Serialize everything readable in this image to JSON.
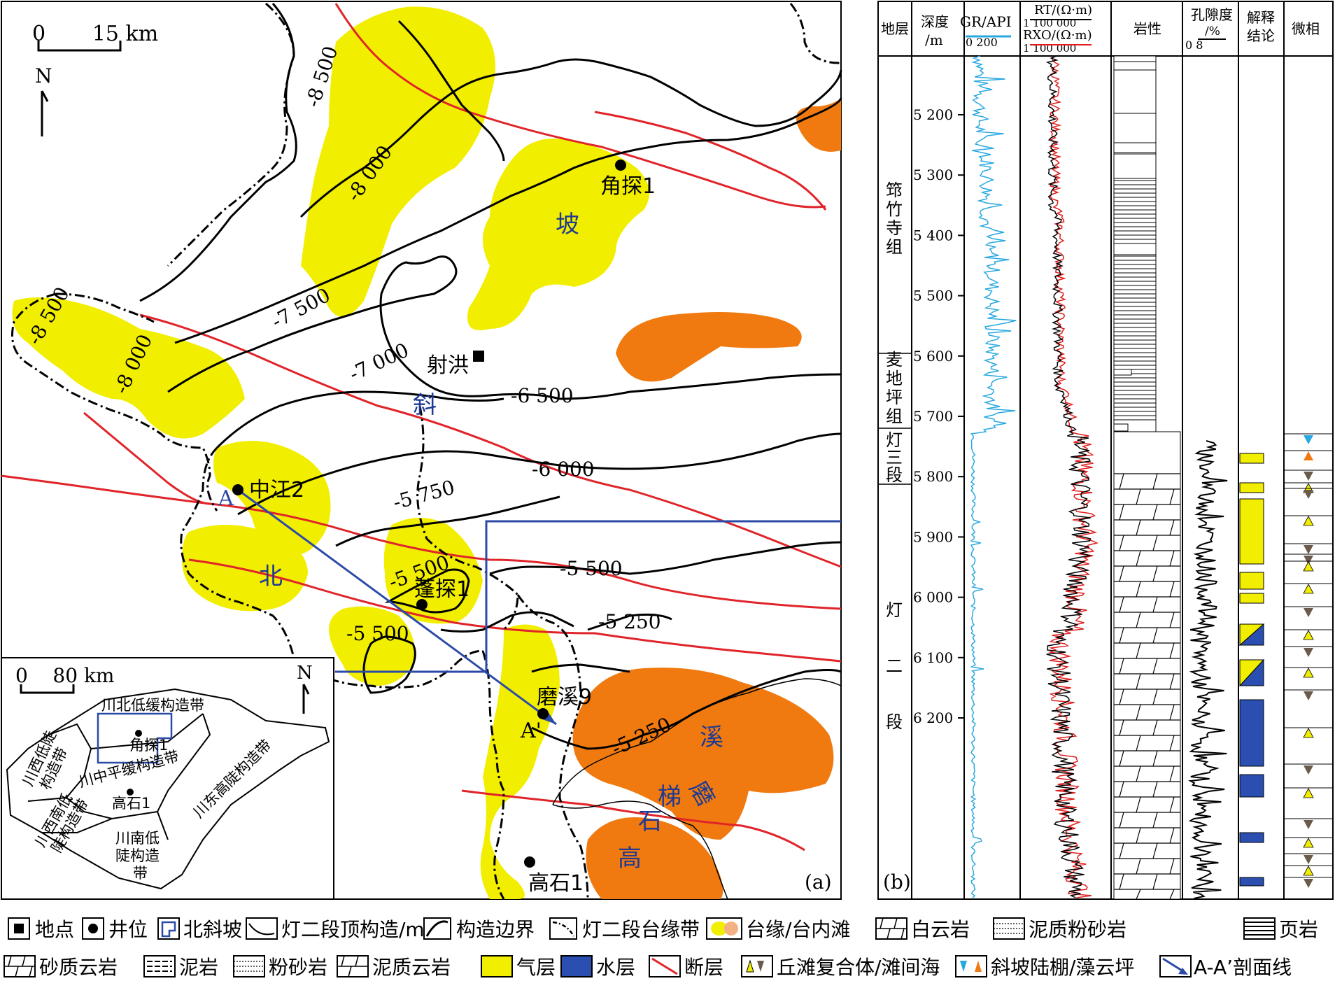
{
  "map": {
    "scale_text": "0       15 km",
    "north": "N",
    "contours": [
      "-8 500",
      "-8 000",
      "-7 500",
      "-8 500",
      "-8 000",
      "-7 000",
      "-6 500",
      "-6 000",
      "-5 750",
      "-5 500",
      "-5 500",
      "-5 250",
      "-5 500",
      "-5 250"
    ],
    "wells": [
      "角探1",
      "中江2",
      "蓬探1",
      "磨溪9",
      "高石1"
    ],
    "site": "射洪",
    "region_chars": {
      "po": "坡",
      "xie": "斜",
      "bei": "北",
      "xi": "溪",
      "gao": "高",
      "shi": "石",
      "ti": "梯",
      "mo": "磨"
    },
    "section_a": "A",
    "section_a2": "A'",
    "panel": "(a)"
  },
  "inset": {
    "scale_text": "0    80 km",
    "north": "N",
    "zones": [
      "川北低缓构造带",
      "川西低陡",
      "构造带",
      "川中平缓构造带",
      "川西南低",
      "陡构造带",
      "川南低",
      "陡构造",
      "带",
      "川东高陡构造带"
    ],
    "wells": [
      "角探1",
      "高石1"
    ]
  },
  "log": {
    "headers": {
      "strata": "地层",
      "depth": "深度",
      "depth_unit": "/m",
      "gr": "GR/API",
      "gr_range": "0 200",
      "rt": "RT/(Ω·m)",
      "rt_range": "1 100 000",
      "rxo": "RXO/(Ω·m)",
      "rxo_range": "1 100 000",
      "lith": "岩性",
      "por": "孔隙度",
      "por_unit": "/%",
      "por_range": "0 8",
      "interp1": "解释",
      "interp2": "结论",
      "facies": "微相"
    },
    "depths": [
      "5 200",
      "5 300",
      "5 400",
      "5 500",
      "5 600",
      "5 700",
      "5 800",
      "5 900",
      "6 000",
      "6 100",
      "6 200"
    ],
    "strata": [
      "筇",
      "竹",
      "寺",
      "组",
      "麦",
      "地",
      "坪",
      "组",
      "灯",
      "三",
      "段",
      "灯",
      "二",
      "段"
    ],
    "panel": "(b)"
  },
  "legend": {
    "row1": [
      "地点",
      "井位",
      "北斜坡",
      "灯二段顶构造/m",
      "构造边界",
      "灯二段台缘带",
      "台缘/台内滩",
      "白云岩",
      "泥质粉砂岩",
      "页岩"
    ],
    "row2": [
      "砂质云岩",
      "泥岩",
      "粉砂岩",
      "泥质云岩",
      "气层",
      "水层",
      "断层",
      "丘滩复合体/滩间海",
      "斜坡陆棚/藻云坪",
      "A-A’剖面线"
    ]
  },
  "colors": {
    "gas": "#f2ee00",
    "beach": "#f07a10",
    "fault": "#e0242a",
    "water": "#2a4fb0",
    "blue_line": "#2b4aa8",
    "gr_curve": "#29a8e0",
    "rxo_curve": "#e01e1e"
  }
}
